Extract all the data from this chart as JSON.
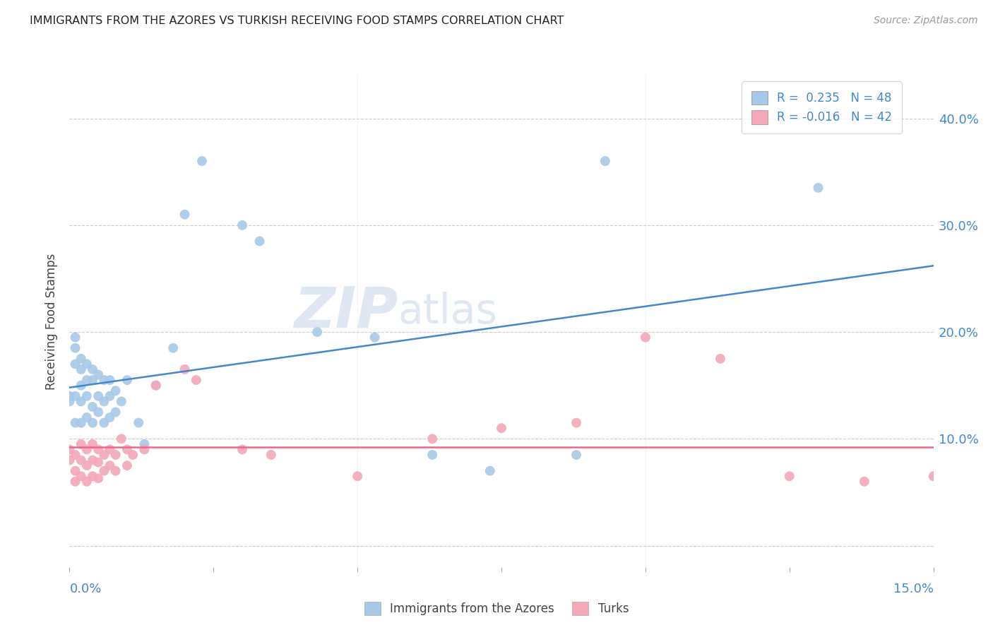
{
  "title": "IMMIGRANTS FROM THE AZORES VS TURKISH RECEIVING FOOD STAMPS CORRELATION CHART",
  "source": "Source: ZipAtlas.com",
  "ylabel": "Receiving Food Stamps",
  "blue_color": "#A8C8E8",
  "pink_color": "#F4A8B8",
  "blue_line_color": "#4488CC",
  "pink_line_color": "#EE6688",
  "watermark": "ZIPatlas",
  "xlim": [
    0.0,
    0.15
  ],
  "ylim": [
    -0.02,
    0.44
  ],
  "yticks": [
    0.0,
    0.1,
    0.2,
    0.3,
    0.4
  ],
  "ytick_labels_right": [
    "",
    "10.0%",
    "20.0%",
    "30.0%",
    "40.0%"
  ],
  "xticks": [
    0.0,
    0.025,
    0.05,
    0.075,
    0.1,
    0.125,
    0.15
  ],
  "blue_N": 48,
  "pink_N": 42,
  "blue_R": "0.235",
  "pink_R": "-0.016",
  "blue_x": [
    0.0,
    0.0,
    0.001,
    0.001,
    0.001,
    0.001,
    0.001,
    0.002,
    0.002,
    0.002,
    0.002,
    0.002,
    0.003,
    0.003,
    0.003,
    0.003,
    0.004,
    0.004,
    0.004,
    0.004,
    0.005,
    0.005,
    0.005,
    0.006,
    0.006,
    0.006,
    0.007,
    0.007,
    0.007,
    0.008,
    0.008,
    0.009,
    0.01,
    0.012,
    0.013,
    0.015,
    0.018,
    0.02,
    0.023,
    0.03,
    0.033,
    0.043,
    0.053,
    0.063,
    0.073,
    0.088,
    0.093,
    0.13
  ],
  "blue_y": [
    0.135,
    0.14,
    0.195,
    0.185,
    0.17,
    0.14,
    0.115,
    0.175,
    0.165,
    0.15,
    0.135,
    0.115,
    0.17,
    0.155,
    0.14,
    0.12,
    0.165,
    0.155,
    0.13,
    0.115,
    0.16,
    0.14,
    0.125,
    0.155,
    0.135,
    0.115,
    0.155,
    0.14,
    0.12,
    0.145,
    0.125,
    0.135,
    0.155,
    0.115,
    0.095,
    0.15,
    0.185,
    0.31,
    0.36,
    0.3,
    0.285,
    0.2,
    0.195,
    0.085,
    0.07,
    0.085,
    0.36,
    0.335
  ],
  "pink_x": [
    0.0,
    0.0,
    0.001,
    0.001,
    0.001,
    0.002,
    0.002,
    0.002,
    0.003,
    0.003,
    0.003,
    0.004,
    0.004,
    0.004,
    0.005,
    0.005,
    0.005,
    0.006,
    0.006,
    0.007,
    0.007,
    0.008,
    0.008,
    0.009,
    0.01,
    0.01,
    0.011,
    0.013,
    0.015,
    0.02,
    0.022,
    0.03,
    0.035,
    0.05,
    0.063,
    0.075,
    0.088,
    0.1,
    0.113,
    0.125,
    0.138,
    0.15
  ],
  "pink_y": [
    0.09,
    0.08,
    0.085,
    0.07,
    0.06,
    0.095,
    0.08,
    0.065,
    0.09,
    0.075,
    0.06,
    0.095,
    0.08,
    0.065,
    0.09,
    0.078,
    0.063,
    0.085,
    0.07,
    0.09,
    0.075,
    0.085,
    0.07,
    0.1,
    0.09,
    0.075,
    0.085,
    0.09,
    0.15,
    0.165,
    0.155,
    0.09,
    0.085,
    0.065,
    0.1,
    0.11,
    0.115,
    0.195,
    0.175,
    0.065,
    0.06,
    0.065
  ]
}
